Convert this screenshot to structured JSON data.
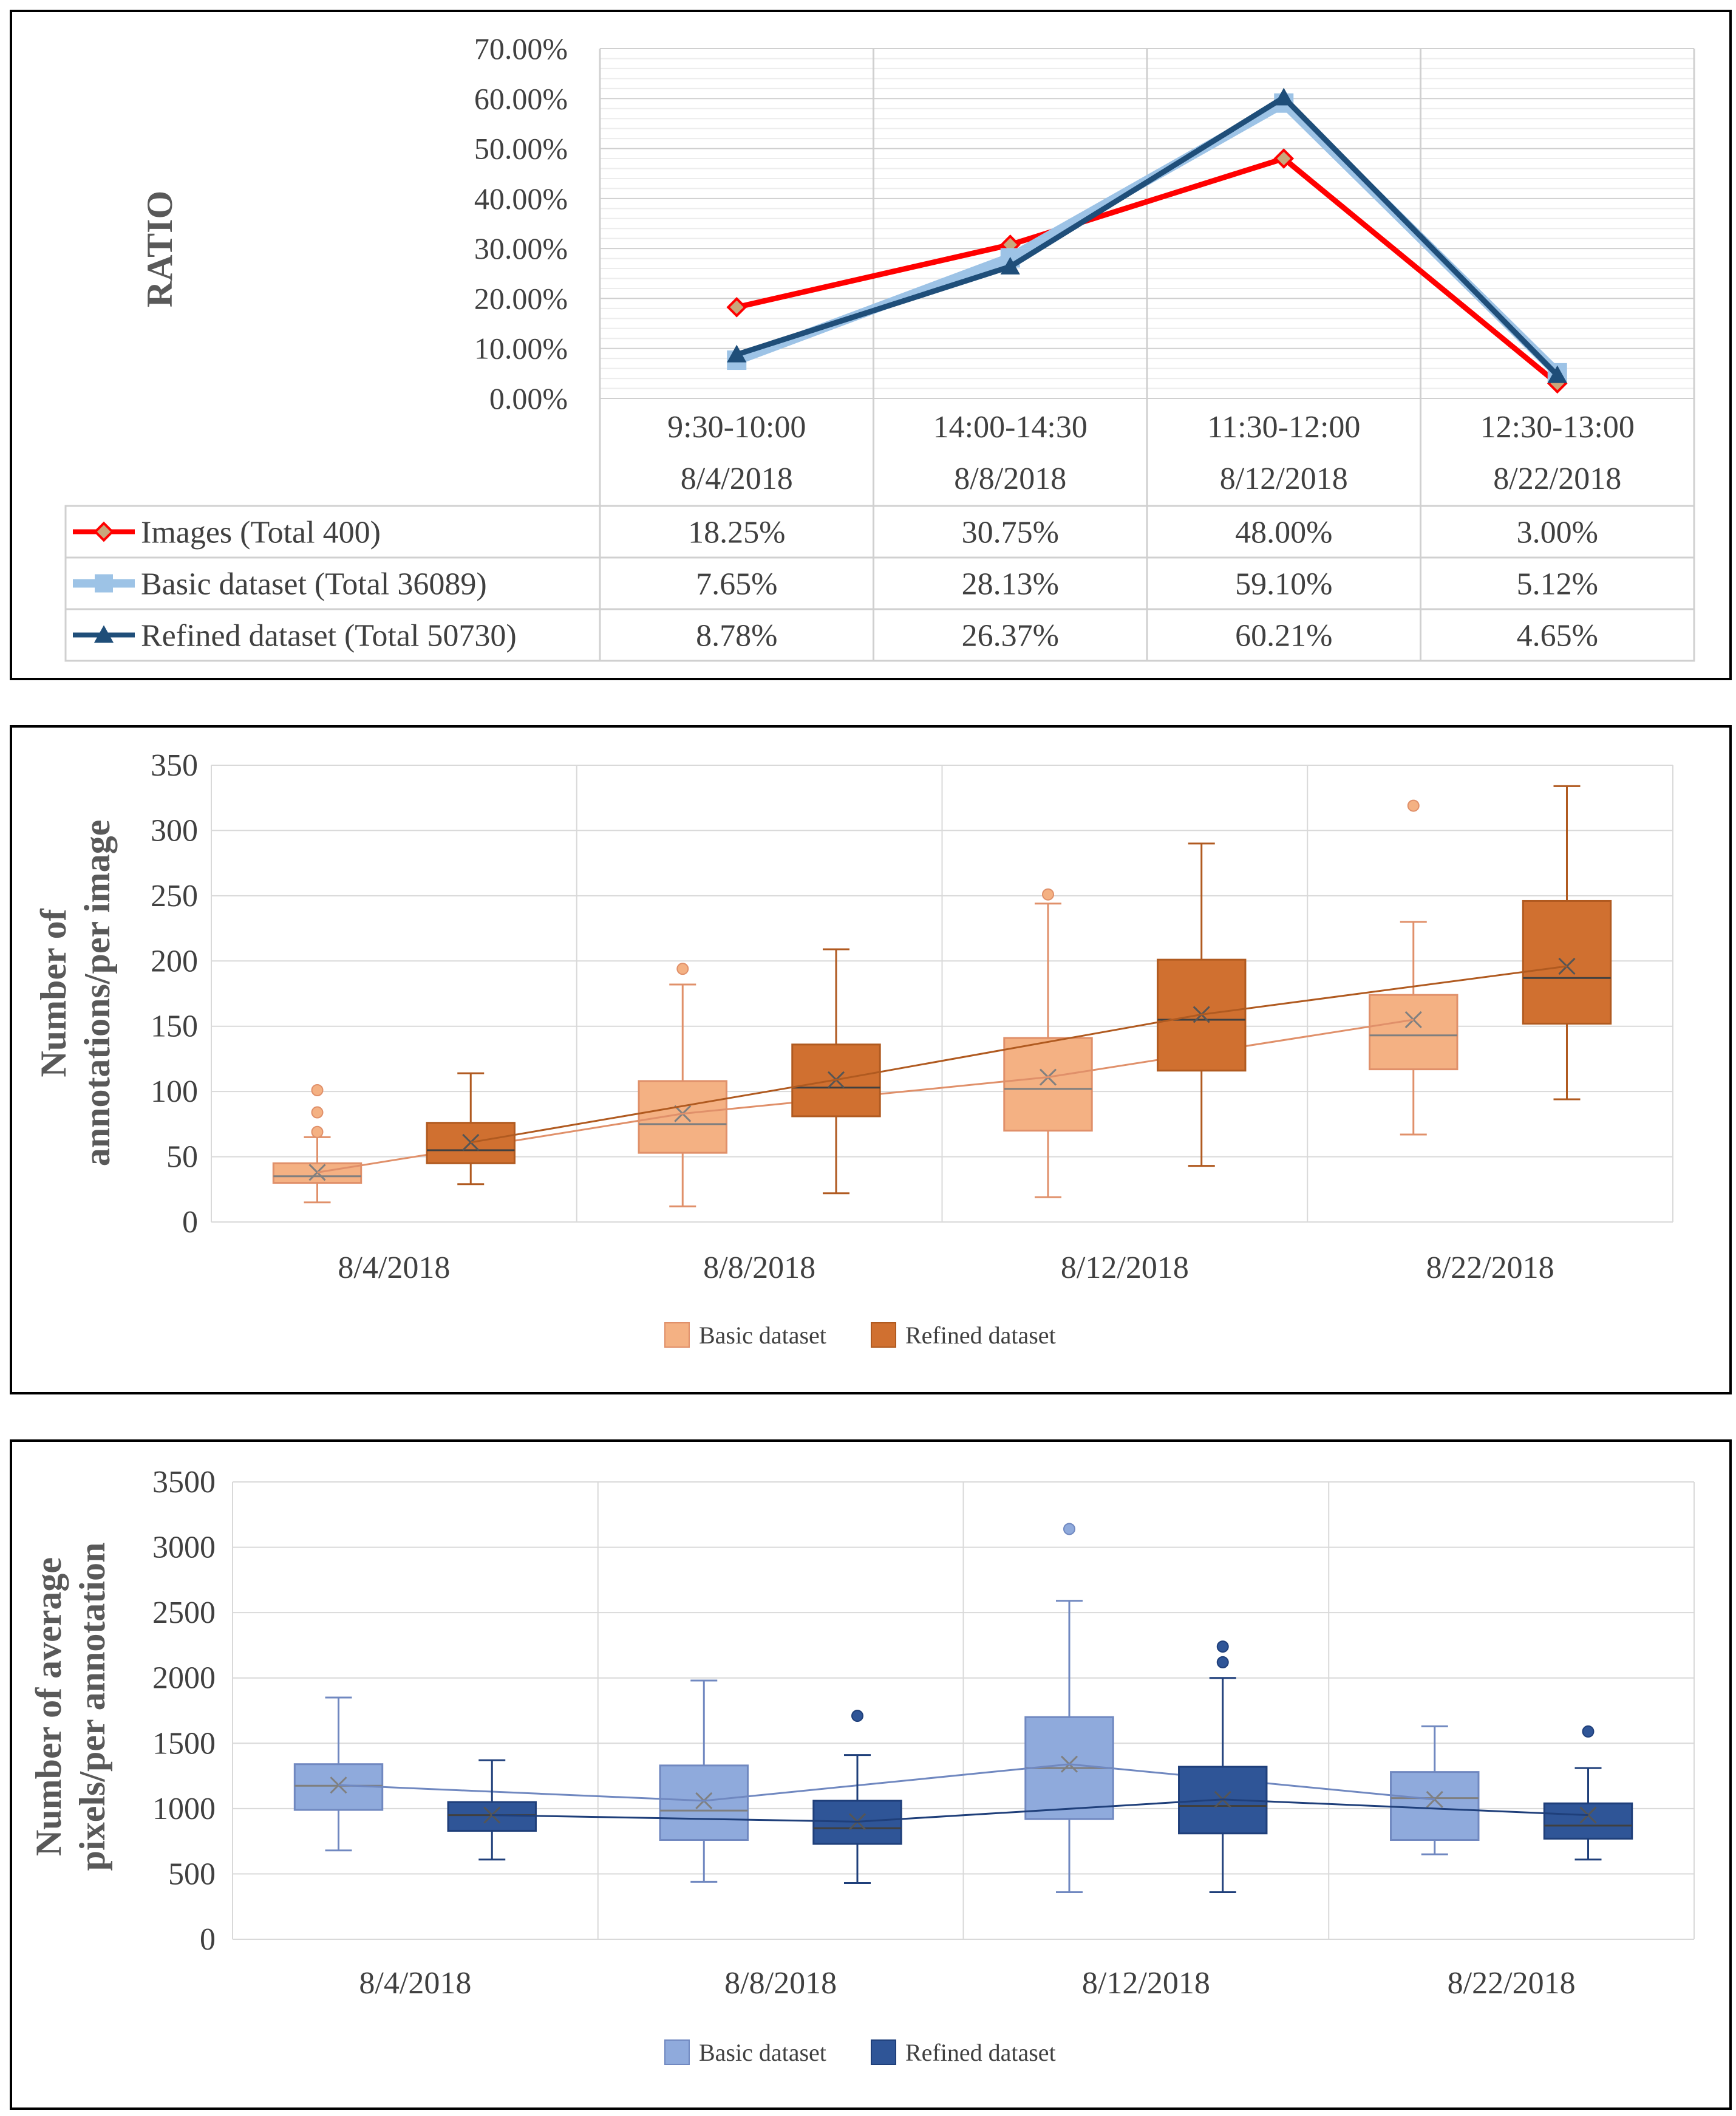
{
  "chart_data": [
    {
      "type": "line",
      "ylabel": "RATIO",
      "ylim": [
        0,
        70
      ],
      "ytick_labels": [
        "0.00%",
        "10.00%",
        "20.00%",
        "30.00%",
        "40.00%",
        "50.00%",
        "60.00%",
        "70.00%"
      ],
      "categories": [
        {
          "time": "9:30-10:00",
          "date": "8/4/2018"
        },
        {
          "time": "14:00-14:30",
          "date": "8/8/2018"
        },
        {
          "time": "11:30-12:00",
          "date": "8/12/2018"
        },
        {
          "time": "12:30-13:00",
          "date": "8/22/2018"
        }
      ],
      "series": [
        {
          "name": "Images (Total 400)",
          "color": "#ff0000",
          "marker": "diamond",
          "values": [
            18.25,
            30.75,
            48.0,
            3.0
          ],
          "labels": [
            "18.25%",
            "30.75%",
            "48.00%",
            "3.00%"
          ]
        },
        {
          "name": "Basic dataset (Total 36089)",
          "color": "#9dc3e6",
          "marker": "square",
          "values": [
            7.65,
            28.13,
            59.1,
            5.12
          ],
          "labels": [
            "7.65%",
            "28.13%",
            "59.10%",
            "5.12%"
          ]
        },
        {
          "name": "Refined dataset (Total 50730)",
          "color": "#1f4e79",
          "marker": "triangle",
          "values": [
            8.78,
            26.37,
            60.21,
            4.65
          ],
          "labels": [
            "8.78%",
            "26.37%",
            "60.21%",
            "4.65%"
          ]
        }
      ]
    },
    {
      "type": "box",
      "ylabel_lines": [
        "Number of",
        "annotations/per image"
      ],
      "ylim": [
        0,
        350
      ],
      "yticks": [
        0,
        50,
        100,
        150,
        200,
        250,
        300,
        350
      ],
      "categories": [
        "8/4/2018",
        "8/8/2018",
        "8/12/2018",
        "8/22/2018"
      ],
      "series": [
        {
          "name": "Basic dataset",
          "fill": "#f4b183",
          "stroke": "#e0906a",
          "boxes": [
            {
              "min": 15,
              "q1": 30,
              "median": 35,
              "q3": 45,
              "max": 65,
              "mean": 38,
              "outliers": [
                69,
                84,
                101
              ]
            },
            {
              "min": 12,
              "q1": 53,
              "median": 75,
              "q3": 108,
              "max": 182,
              "mean": 83,
              "outliers": [
                194
              ]
            },
            {
              "min": 19,
              "q1": 70,
              "median": 102,
              "q3": 141,
              "max": 244,
              "mean": 111,
              "outliers": [
                251
              ]
            },
            {
              "min": 67,
              "q1": 117,
              "median": 143,
              "q3": 174,
              "max": 230,
              "mean": 155,
              "outliers": [
                319
              ]
            }
          ]
        },
        {
          "name": "Refined dataset",
          "fill": "#d07030",
          "stroke": "#b05a20",
          "boxes": [
            {
              "min": 29,
              "q1": 45,
              "median": 55,
              "q3": 76,
              "max": 114,
              "mean": 61,
              "outliers": []
            },
            {
              "min": 22,
              "q1": 81,
              "median": 103,
              "q3": 136,
              "max": 209,
              "mean": 109,
              "outliers": []
            },
            {
              "min": 43,
              "q1": 116,
              "median": 155,
              "q3": 201,
              "max": 290,
              "mean": 159,
              "outliers": []
            },
            {
              "min": 94,
              "q1": 152,
              "median": 187,
              "q3": 246,
              "max": 334,
              "mean": 196,
              "outliers": []
            }
          ]
        }
      ]
    },
    {
      "type": "box",
      "ylabel_lines": [
        "Number of average",
        "pixels/per annotation"
      ],
      "ylim": [
        0,
        3500
      ],
      "yticks": [
        0,
        500,
        1000,
        1500,
        2000,
        2500,
        3000,
        3500
      ],
      "categories": [
        "8/4/2018",
        "8/8/2018",
        "8/12/2018",
        "8/22/2018"
      ],
      "series": [
        {
          "name": "Basic dataset",
          "fill": "#8faadc",
          "stroke": "#7088c0",
          "boxes": [
            {
              "min": 680,
              "q1": 990,
              "median": 1175,
              "q3": 1340,
              "max": 1850,
              "mean": 1180,
              "outliers": []
            },
            {
              "min": 440,
              "q1": 760,
              "median": 985,
              "q3": 1330,
              "max": 1980,
              "mean": 1060,
              "outliers": []
            },
            {
              "min": 360,
              "q1": 920,
              "median": 1310,
              "q3": 1700,
              "max": 2590,
              "mean": 1340,
              "outliers": [
                3140
              ]
            },
            {
              "min": 650,
              "q1": 760,
              "median": 1080,
              "q3": 1280,
              "max": 1630,
              "mean": 1070,
              "outliers": []
            }
          ]
        },
        {
          "name": "Refined dataset",
          "fill": "#2f5597",
          "stroke": "#1f3f7a",
          "boxes": [
            {
              "min": 610,
              "q1": 830,
              "median": 950,
              "q3": 1050,
              "max": 1370,
              "mean": 950,
              "outliers": []
            },
            {
              "min": 430,
              "q1": 730,
              "median": 850,
              "q3": 1060,
              "max": 1410,
              "mean": 900,
              "outliers": [
                1710
              ]
            },
            {
              "min": 360,
              "q1": 810,
              "median": 1020,
              "q3": 1320,
              "max": 2000,
              "mean": 1070,
              "outliers": [
                2120,
                2240
              ]
            },
            {
              "min": 610,
              "q1": 770,
              "median": 870,
              "q3": 1040,
              "max": 1310,
              "mean": 950,
              "outliers": [
                1590
              ]
            }
          ]
        }
      ]
    }
  ]
}
